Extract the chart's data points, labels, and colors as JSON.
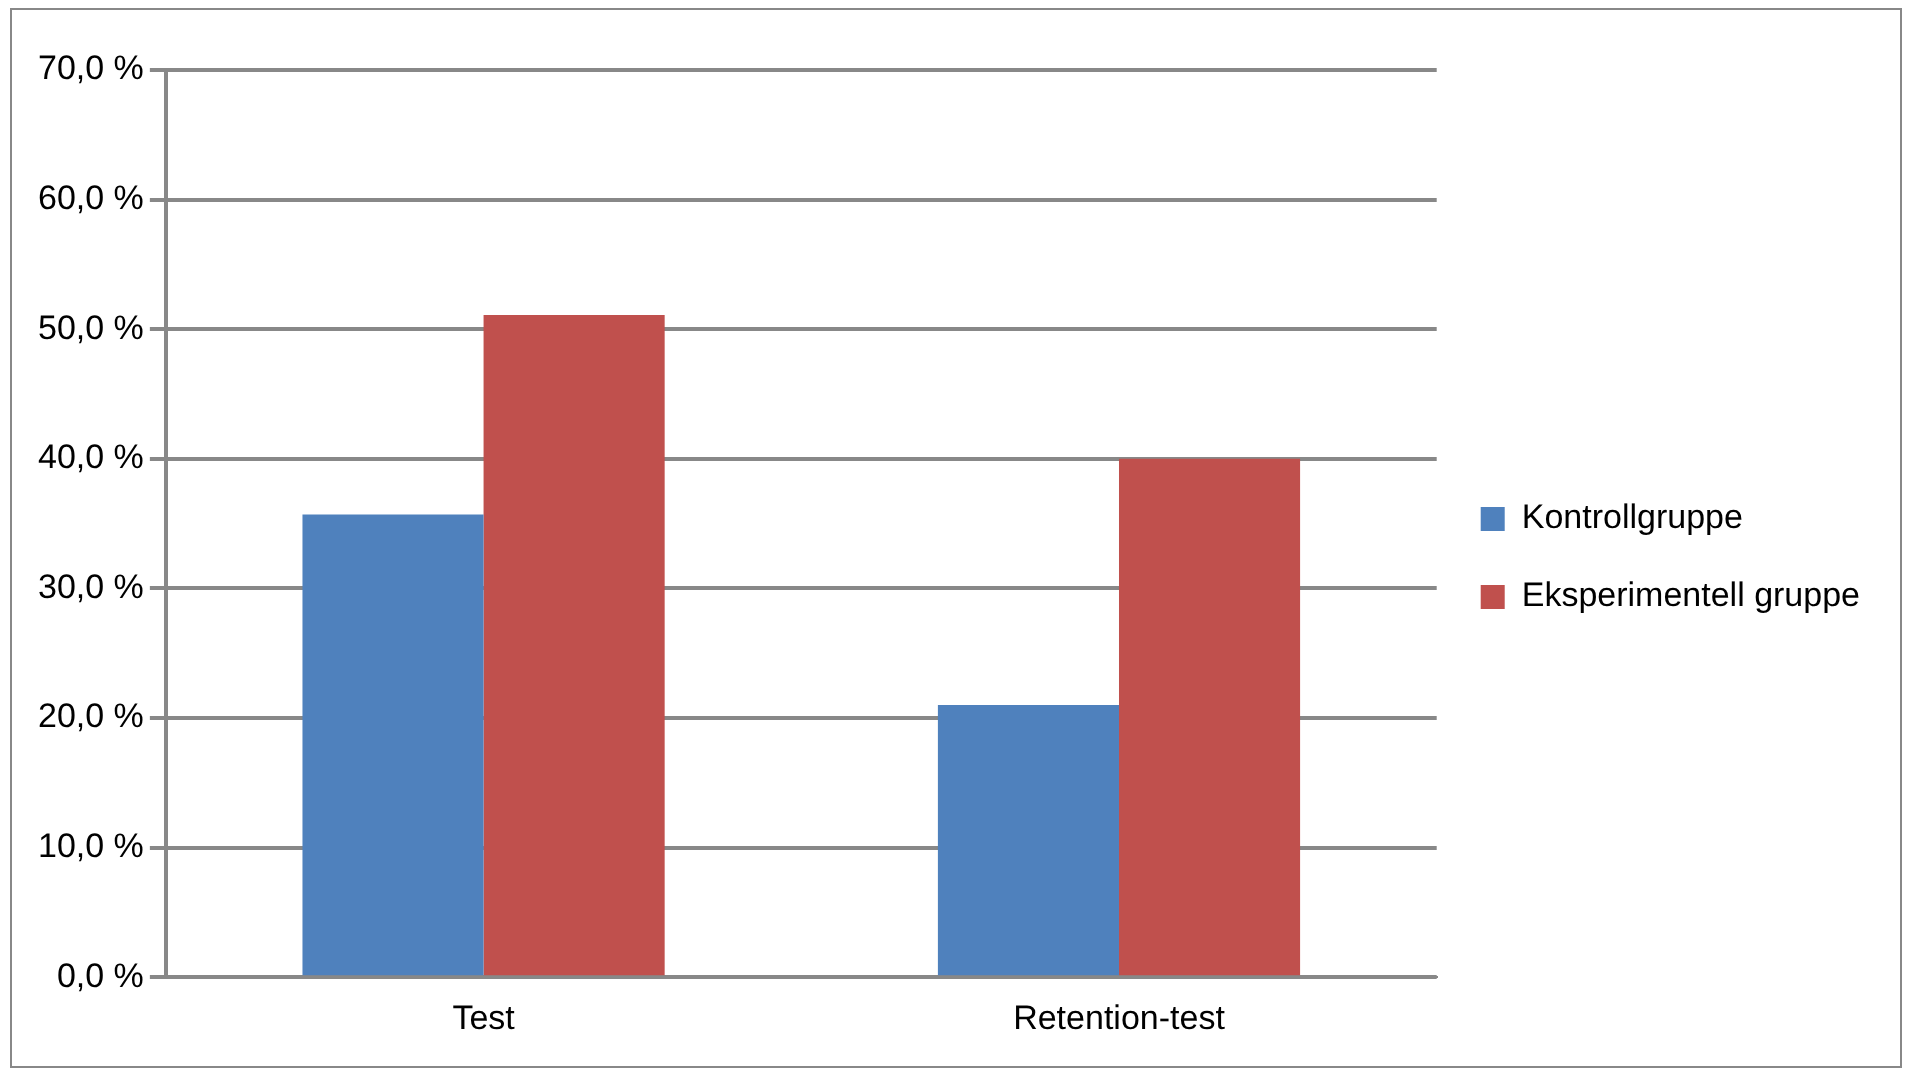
{
  "chart_data": {
    "type": "bar",
    "categories": [
      "Test",
      "Retention-test"
    ],
    "series": [
      {
        "name": "Kontrollgruppe",
        "color": "#4f81bd",
        "values": [
          35.7,
          21.0
        ]
      },
      {
        "name": "Eksperimentell gruppe",
        "color": "#c0504d",
        "values": [
          51.1,
          40.0
        ]
      }
    ],
    "ylim": [
      0,
      70
    ],
    "yticks": [
      {
        "value": 0,
        "label": "0,0 %"
      },
      {
        "value": 10,
        "label": "10,0 %"
      },
      {
        "value": 20,
        "label": "20,0 %"
      },
      {
        "value": 30,
        "label": "30,0 %"
      },
      {
        "value": 40,
        "label": "40,0 %"
      },
      {
        "value": 50,
        "label": "50,0 %"
      },
      {
        "value": 60,
        "label": "60,0 %"
      },
      {
        "value": 70,
        "label": "70,0 %"
      }
    ],
    "grid": "y",
    "legend": "right"
  }
}
